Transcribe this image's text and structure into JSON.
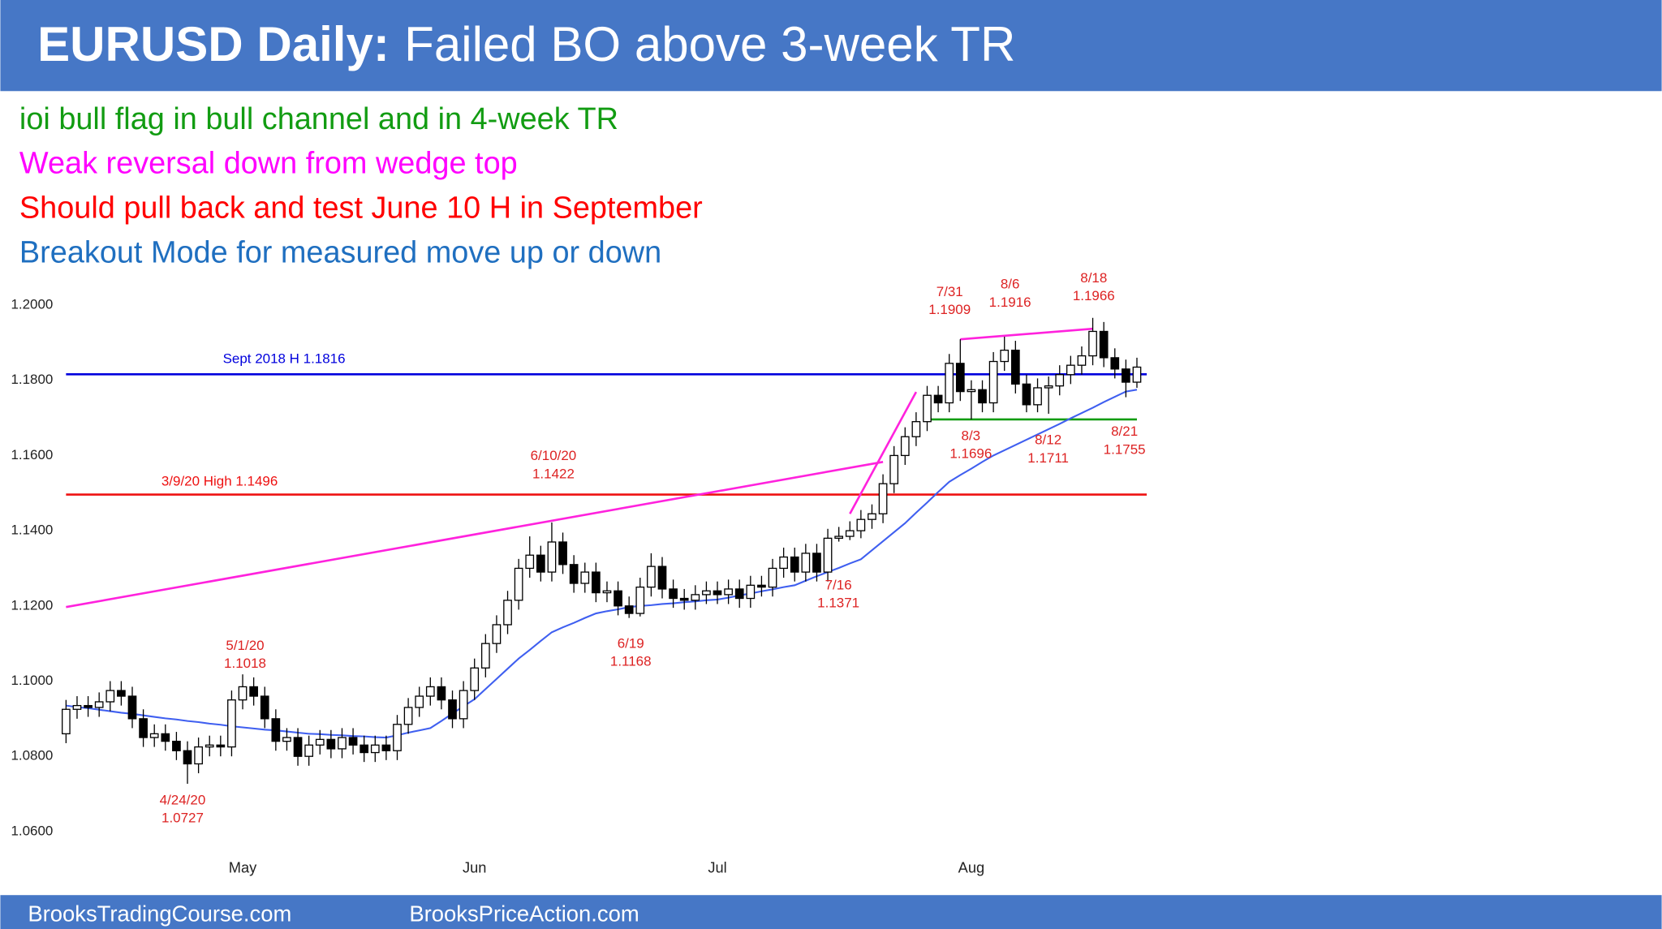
{
  "chart_data": {
    "type": "candlestick",
    "title_lead": "EURUSD Daily:",
    "title": "Failed BO above 3-week TR",
    "notes": [
      {
        "text": "ioi bull flag in bull channel and in 4-week TR",
        "color": "#129c12"
      },
      {
        "text": "Weak reversal down from wedge top",
        "color": "#ff00ff"
      },
      {
        "text": "Should pull back and test June 10 H in September",
        "color": "#ff0000"
      },
      {
        "text": "Breakout Mode for measured move up or down",
        "color": "#1f6fc0"
      }
    ],
    "ylim": [
      1.06,
      1.2
    ],
    "yticks": [
      {
        "value": 1.2,
        "label": "1.2000"
      },
      {
        "value": 1.18,
        "label": "1.1800"
      },
      {
        "value": 1.16,
        "label": "1.1600"
      },
      {
        "value": 1.14,
        "label": "1.1400"
      },
      {
        "value": 1.12,
        "label": "1.1200"
      },
      {
        "value": 1.1,
        "label": "1.1000"
      },
      {
        "value": 1.08,
        "label": "1.0800"
      },
      {
        "value": 1.06,
        "label": "1.0600"
      }
    ],
    "xticks": [
      {
        "value": 16,
        "label": "May"
      },
      {
        "value": 37,
        "label": "Jun"
      },
      {
        "value": 59,
        "label": "Jul"
      },
      {
        "value": 82,
        "label": "Aug"
      }
    ],
    "up_color": "#ffffff",
    "down_color": "#000000",
    "open": [
      1.086,
      1.0925,
      1.0935,
      1.093,
      1.0945,
      1.0975,
      1.096,
      1.09,
      1.085,
      1.086,
      1.084,
      1.0815,
      1.078,
      1.0825,
      1.083,
      1.0825,
      1.095,
      1.0985,
      1.096,
      1.09,
      1.084,
      1.085,
      1.08,
      1.083,
      1.0845,
      1.082,
      1.085,
      1.083,
      1.081,
      1.083,
      1.0815,
      1.0885,
      1.093,
      1.096,
      1.0985,
      1.095,
      1.09,
      1.0975,
      1.1035,
      1.11,
      1.115,
      1.1215,
      1.13,
      1.1335,
      1.129,
      1.137,
      1.131,
      1.126,
      1.129,
      1.1235,
      1.124,
      1.12,
      1.118,
      1.125,
      1.1305,
      1.1245,
      1.122,
      1.1215,
      1.123,
      1.124,
      1.123,
      1.1245,
      1.122,
      1.1255,
      1.125,
      1.13,
      1.133,
      1.129,
      1.134,
      1.129,
      1.138,
      1.1385,
      1.14,
      1.143,
      1.1445,
      1.1525,
      1.16,
      1.165,
      1.169,
      1.176,
      1.174,
      1.1845,
      1.177,
      1.1775,
      1.174,
      1.185,
      1.188,
      1.179,
      1.1735,
      1.178,
      1.1785,
      1.1815,
      1.184,
      1.1865,
      1.193,
      1.186,
      1.183,
      1.1795
    ],
    "high": [
      1.095,
      1.096,
      1.096,
      1.097,
      1.1,
      1.1,
      1.0985,
      1.0925,
      1.0885,
      1.0885,
      1.0865,
      1.084,
      1.085,
      1.0855,
      1.0855,
      1.0975,
      1.1018,
      1.101,
      1.0985,
      1.0925,
      1.0875,
      1.0875,
      1.0855,
      1.087,
      1.087,
      1.0875,
      1.0875,
      1.0855,
      1.0855,
      1.0855,
      1.091,
      1.0955,
      1.0985,
      1.101,
      1.101,
      1.0975,
      1.1,
      1.106,
      1.1125,
      1.1175,
      1.124,
      1.1325,
      1.1385,
      1.136,
      1.1422,
      1.1395,
      1.1335,
      1.1315,
      1.1315,
      1.1265,
      1.1265,
      1.1225,
      1.1275,
      1.134,
      1.133,
      1.127,
      1.1245,
      1.1255,
      1.1265,
      1.1265,
      1.127,
      1.127,
      1.128,
      1.128,
      1.1325,
      1.1355,
      1.1355,
      1.1365,
      1.1365,
      1.1405,
      1.141,
      1.1425,
      1.1455,
      1.147,
      1.155,
      1.1625,
      1.1675,
      1.1715,
      1.1785,
      1.1785,
      1.187,
      1.1909,
      1.18,
      1.18,
      1.1875,
      1.1916,
      1.1905,
      1.1815,
      1.1805,
      1.181,
      1.184,
      1.1865,
      1.189,
      1.1966,
      1.1955,
      1.1885,
      1.1855,
      1.186
    ],
    "low": [
      1.0835,
      1.09,
      1.0905,
      1.0905,
      1.092,
      1.0935,
      1.0875,
      1.0825,
      1.0825,
      1.0815,
      1.079,
      1.0727,
      1.0755,
      1.08,
      1.08,
      1.08,
      1.0925,
      1.0935,
      1.0875,
      1.0815,
      1.0815,
      1.0775,
      1.0775,
      1.0805,
      1.0795,
      1.0795,
      1.0805,
      1.0785,
      1.0785,
      1.079,
      1.079,
      1.086,
      1.0905,
      1.0935,
      1.0925,
      1.0875,
      1.0875,
      1.095,
      1.101,
      1.1075,
      1.1125,
      1.119,
      1.1275,
      1.1265,
      1.1265,
      1.1285,
      1.1235,
      1.1235,
      1.121,
      1.121,
      1.1175,
      1.1168,
      1.1172,
      1.1225,
      1.122,
      1.1195,
      1.119,
      1.119,
      1.1205,
      1.1205,
      1.1205,
      1.1195,
      1.1195,
      1.1225,
      1.1225,
      1.1275,
      1.1265,
      1.1265,
      1.1265,
      1.1265,
      1.1371,
      1.1375,
      1.138,
      1.1405,
      1.142,
      1.15,
      1.1575,
      1.1625,
      1.1665,
      1.1715,
      1.1715,
      1.1745,
      1.1696,
      1.1715,
      1.1715,
      1.1825,
      1.1765,
      1.1715,
      1.1715,
      1.1711,
      1.176,
      1.179,
      1.1815,
      1.184,
      1.1835,
      1.1805,
      1.1755,
      1.178
    ],
    "close": [
      1.0925,
      1.0935,
      1.093,
      1.0945,
      1.0975,
      1.096,
      1.09,
      1.085,
      1.086,
      1.084,
      1.0815,
      1.078,
      1.0825,
      1.083,
      1.0825,
      1.095,
      1.0985,
      1.096,
      1.09,
      1.084,
      1.085,
      1.08,
      1.083,
      1.0845,
      1.082,
      1.085,
      1.083,
      1.081,
      1.083,
      1.0815,
      1.0885,
      1.093,
      1.096,
      1.0985,
      1.095,
      1.09,
      1.0975,
      1.1035,
      1.11,
      1.115,
      1.1215,
      1.13,
      1.1335,
      1.129,
      1.137,
      1.131,
      1.126,
      1.129,
      1.1235,
      1.124,
      1.12,
      1.118,
      1.125,
      1.1305,
      1.1245,
      1.122,
      1.1215,
      1.123,
      1.124,
      1.123,
      1.1245,
      1.122,
      1.1255,
      1.125,
      1.13,
      1.133,
      1.129,
      1.134,
      1.129,
      1.138,
      1.1385,
      1.14,
      1.143,
      1.1445,
      1.1525,
      1.16,
      1.165,
      1.169,
      1.176,
      1.174,
      1.1845,
      1.177,
      1.1775,
      1.174,
      1.185,
      1.188,
      1.179,
      1.1735,
      1.178,
      1.1785,
      1.1815,
      1.184,
      1.1865,
      1.193,
      1.186,
      1.183,
      1.1795,
      1.1835
    ],
    "ema": {
      "color": "#3f5ff0",
      "values": [
        1.0935,
        1.0931,
        1.0928,
        1.0924,
        1.092,
        1.0916,
        1.0913,
        1.0909,
        1.0905,
        1.0901,
        1.0898,
        1.0894,
        1.0891,
        1.0887,
        1.0884,
        1.088,
        1.0877,
        1.0874,
        1.0871,
        1.0869,
        1.0866,
        1.0863,
        1.086,
        1.0859,
        1.0857,
        1.0856,
        1.0854,
        1.0853,
        1.0851,
        1.085,
        1.0856,
        1.0863,
        1.0869,
        1.0875,
        1.0894,
        1.0914,
        1.0933,
        1.0952,
        1.0979,
        1.1006,
        1.1033,
        1.106,
        1.1083,
        1.1107,
        1.113,
        1.1143,
        1.1155,
        1.1168,
        1.118,
        1.1186,
        1.1191,
        1.1197,
        1.12,
        1.1202,
        1.1205,
        1.1207,
        1.121,
        1.1212,
        1.1215,
        1.1217,
        1.1222,
        1.1228,
        1.1233,
        1.1239,
        1.1244,
        1.125,
        1.1255,
        1.1267,
        1.1279,
        1.129,
        1.1301,
        1.1313,
        1.1324,
        1.1348,
        1.1372,
        1.1396,
        1.142,
        1.1448,
        1.1475,
        1.1503,
        1.153,
        1.1548,
        1.1565,
        1.1583,
        1.16,
        1.1614,
        1.1628,
        1.1642,
        1.1656,
        1.167,
        1.1684,
        1.1699,
        1.1713,
        1.1727,
        1.1742,
        1.1756,
        1.177,
        1.1775
      ]
    },
    "levels": [
      {
        "label": "Sept 2018 H 1.1816",
        "value": 1.1816,
        "color": "#0000dd"
      },
      {
        "label": "3/9/20 High 1.1496",
        "value": 1.1496,
        "color": "#ee1111"
      }
    ],
    "trendlines": [
      {
        "color": "#ff22dd",
        "x": [
          0,
          74
        ],
        "values": [
          1.1197,
          1.1583
        ]
      },
      {
        "color": "#ff22dd",
        "x": [
          71,
          77
        ],
        "values": [
          1.1445,
          1.1769
        ]
      },
      {
        "color": "#ff22dd",
        "x": [
          81,
          93
        ],
        "values": [
          1.1909,
          1.1937
        ]
      },
      {
        "color": "#129c12",
        "x": [
          78,
          97
        ],
        "values": [
          1.1696,
          1.1696
        ]
      }
    ],
    "annotation_color": "#dd2222",
    "annotations": [
      {
        "date": "4/24/20",
        "price": 1.0727
      },
      {
        "date": "5/1/20",
        "price": 1.1018
      },
      {
        "date": "6/10/20",
        "price": 1.1422
      },
      {
        "date": "6/19",
        "price": 1.1168
      },
      {
        "date": "7/16",
        "price": 1.1371
      },
      {
        "date": "7/31",
        "price": 1.1909
      },
      {
        "date": "8/6",
        "price": 1.1916
      },
      {
        "date": "8/18",
        "price": 1.1966
      },
      {
        "date": "8/3",
        "price": 1.1696
      },
      {
        "date": "8/12",
        "price": 1.1711
      },
      {
        "date": "8/21",
        "price": 1.1755
      }
    ]
  },
  "footer": [
    "BrooksTradingCourse.com",
    "BrooksPriceAction.com"
  ]
}
